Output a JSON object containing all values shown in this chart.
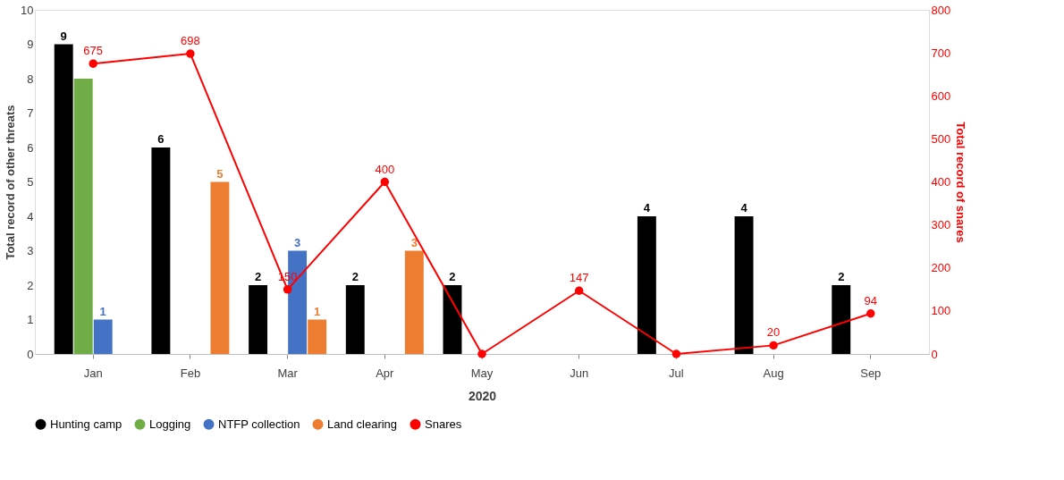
{
  "chart_data": {
    "type": "bar",
    "xlabel": "2020",
    "ylabel": "Total record of other threats",
    "y2label": "Total record of snares",
    "categories": [
      "Jan",
      "Feb",
      "Mar",
      "Apr",
      "May",
      "Jun",
      "Jul",
      "Aug",
      "Sep"
    ],
    "series": [
      {
        "name": "Hunting camp",
        "color": "#000000",
        "values": [
          9,
          6,
          2,
          2,
          2,
          null,
          4,
          4,
          2
        ],
        "value_labels": [
          "9",
          "6",
          "2",
          "2",
          "2",
          null,
          "4",
          "4",
          "2"
        ]
      },
      {
        "name": "Logging",
        "color": "#70ad47",
        "values": [
          8,
          null,
          null,
          null,
          null,
          null,
          null,
          null,
          null
        ]
      },
      {
        "name": "NTFP collection",
        "color": "#4472c4",
        "values": [
          1,
          null,
          3,
          null,
          null,
          null,
          null,
          null,
          null
        ],
        "value_labels": [
          "1",
          null,
          "3",
          null,
          null,
          null,
          null,
          null,
          null
        ]
      },
      {
        "name": "Land clearing",
        "color": "#ed7d31",
        "values": [
          null,
          5,
          1,
          3,
          null,
          null,
          null,
          null,
          null
        ],
        "value_labels": [
          null,
          "5",
          "1",
          "3",
          null,
          null,
          null,
          null,
          null
        ]
      },
      {
        "name": "Snares",
        "type": "line",
        "axis": "y2",
        "color": "#ff0000",
        "values": [
          675,
          698,
          150,
          400,
          0,
          147,
          0,
          20,
          94
        ],
        "value_labels": [
          "675",
          "698",
          "150",
          "400",
          null,
          "147",
          null,
          "20",
          "94"
        ]
      }
    ],
    "ylim": [
      0,
      10
    ],
    "yticks": [
      0,
      1,
      2,
      3,
      4,
      5,
      6,
      7,
      8,
      9,
      10
    ],
    "y2lim": [
      0,
      800
    ],
    "y2ticks": [
      0,
      100,
      200,
      300,
      400,
      500,
      600,
      700,
      800
    ],
    "grid": false,
    "legend": "bottom",
    "marker": "circle",
    "line_style": "solid"
  }
}
